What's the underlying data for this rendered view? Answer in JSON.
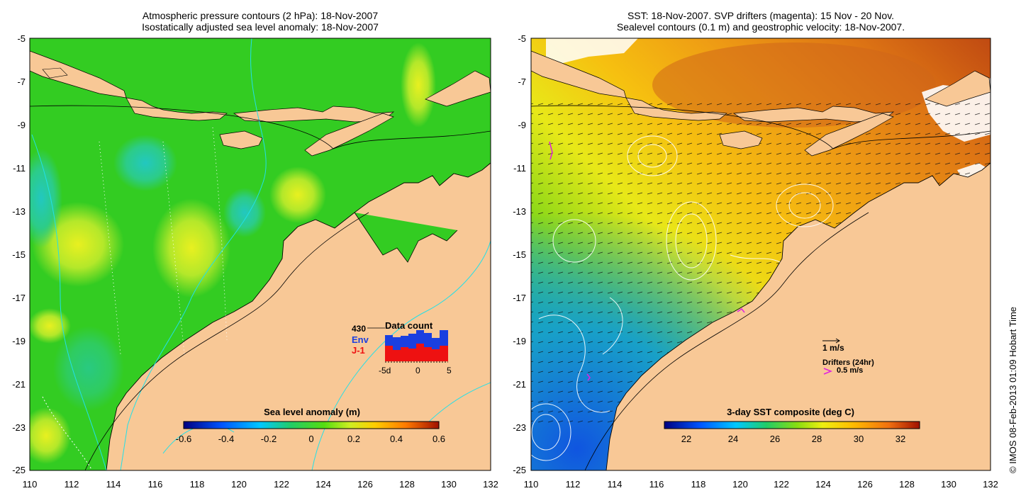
{
  "left_panel": {
    "title_line1": "Atmospheric pressure contours (2 hPa): 18-Nov-2007",
    "title_line2": "Isostatically adjusted sea level anomaly: 18-Nov-2007",
    "colorbar_title": "Sea level anomaly (m)",
    "colorbar_ticks": [
      "-0.6",
      "-0.4",
      "-0.2",
      "0",
      "0.2",
      "0.4",
      "0.6"
    ],
    "inset": {
      "title": "Data count",
      "count_label": "430",
      "env_label": "Env",
      "j1_label": "J-1",
      "xticks": [
        "-5d",
        "0",
        "5"
      ],
      "env_color": "#1a3fe0",
      "j1_color": "#ee1111"
    }
  },
  "right_panel": {
    "title_line1": "SST: 18-Nov-2007. SVP drifters (magenta): 15 Nov - 20 Nov.",
    "title_line2": "Sealevel contours (0.1 m) and geostrophic velocity: 18-Nov-2007.",
    "colorbar_title": "3-day SST composite (deg C)",
    "colorbar_ticks": [
      "22",
      "24",
      "26",
      "28",
      "30",
      "32"
    ],
    "velocity_scale_label": "1 m/s",
    "drifters_label": "Drifters (24hr)",
    "drifter_scale_label": "0.5 m/s",
    "drifter_color": "#e020e0"
  },
  "axes": {
    "y_ticks": [
      "-5",
      "-7",
      "-9",
      "-11",
      "-13",
      "-15",
      "-17",
      "-19",
      "-21",
      "-23",
      "-25"
    ],
    "x_ticks": [
      "110",
      "112",
      "114",
      "116",
      "118",
      "120",
      "122",
      "124",
      "126",
      "128",
      "130",
      "132"
    ]
  },
  "credit": "© IMOS 08-Feb-2013 01:09 Hobart Time",
  "colors": {
    "land": "#f8c896",
    "ocean_sla": "#33cc22",
    "sst_warm": "#e58a18",
    "sst_hot": "#c04010"
  }
}
